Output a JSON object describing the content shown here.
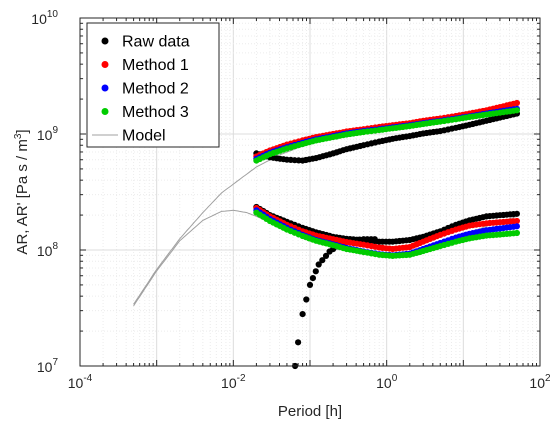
{
  "chart_data": {
    "type": "scatter",
    "xlabel": "Period [h]",
    "ylabel_parts": [
      "AR, AR'  [Pa s / m",
      "3",
      "]"
    ],
    "x_scale": "log",
    "y_scale": "log",
    "xlim": [
      0.0001,
      100
    ],
    "ylim": [
      10000000,
      10000000000
    ],
    "x_ticks": [
      {
        "base": "10",
        "exp": "-4",
        "value": 0.0001
      },
      {
        "base": "10",
        "exp": "-2",
        "value": 0.01
      },
      {
        "base": "10",
        "exp": "0",
        "value": 1
      },
      {
        "base": "10",
        "exp": "2",
        "value": 100
      }
    ],
    "y_ticks": [
      {
        "base": "10",
        "exp": "7",
        "value": 10000000
      },
      {
        "base": "10",
        "exp": "8",
        "value": 100000000
      },
      {
        "base": "10",
        "exp": "9",
        "value": 1000000000
      },
      {
        "base": "10",
        "exp": "10",
        "value": 10000000000
      }
    ],
    "grid": true,
    "legend_position": "top-left",
    "legend": [
      {
        "name": "Raw data",
        "color": "#000000",
        "kind": "marker"
      },
      {
        "name": "Method 1",
        "color": "#ff0000",
        "kind": "marker"
      },
      {
        "name": "Method 2",
        "color": "#0000ff",
        "kind": "marker"
      },
      {
        "name": "Method 3",
        "color": "#00cc00",
        "kind": "marker"
      },
      {
        "name": "Model",
        "color": "#a0a0a0",
        "kind": "line"
      }
    ],
    "series": [
      {
        "name": "Model",
        "color": "#a0a0a0",
        "kind": "line",
        "curves": [
          {
            "x": [
              0.0005,
              0.001,
              0.002,
              0.004,
              0.007,
              0.01,
              0.02,
              0.04,
              0.07,
              0.1,
              0.2,
              0.5,
              1,
              2,
              5,
              10,
              20,
              50
            ],
            "y": [
              34000000,
              68000000,
              125000000,
              210000000,
              310000000,
              370000000,
              520000000,
              660000000,
              760000000,
              820000000,
              910000000,
              1000000000,
              1070000000,
              1150000000,
              1260000000,
              1350000000,
              1450000000,
              1600000000
            ]
          },
          {
            "x": [
              0.0005,
              0.001,
              0.002,
              0.004,
              0.007,
              0.01,
              0.015,
              0.02,
              0.04,
              0.07,
              0.1,
              0.2,
              0.5,
              1,
              2,
              5,
              10,
              20,
              50
            ],
            "y": [
              33000000,
              66000000,
              120000000,
              180000000,
              215000000,
              220000000,
              210000000,
              195000000,
              160000000,
              135000000,
              122000000,
              108000000,
              98000000,
              92000000,
              95000000,
              112000000,
              135000000,
              160000000,
              195000000
            ]
          }
        ]
      },
      {
        "name": "Raw data",
        "color": "#000000",
        "kind": "marker",
        "curves": [
          {
            "x": [
              0.02,
              0.03,
              0.05,
              0.08,
              0.12,
              0.2,
              0.3,
              0.5,
              0.8,
              1.2,
              2,
              3,
              5,
              8,
              12,
              20,
              50
            ],
            "y": [
              680000000,
              630000000,
              600000000,
              590000000,
              620000000,
              680000000,
              740000000,
              800000000,
              860000000,
              910000000,
              960000000,
              1010000000,
              1060000000,
              1130000000,
              1200000000,
              1300000000,
              1500000000
            ]
          },
          {
            "x": [
              0.02,
              0.03,
              0.05,
              0.08,
              0.12,
              0.2,
              0.3,
              0.5,
              0.8,
              1.2,
              2,
              3,
              5,
              8,
              12,
              20,
              50
            ],
            "y": [
              235000000,
              200000000,
              175000000,
              155000000,
              142000000,
              130000000,
              125000000,
              121000000,
              118000000,
              118000000,
              122000000,
              130000000,
              145000000,
              165000000,
              180000000,
              195000000,
              205000000
            ]
          },
          {
            "x": [
              0.064,
              0.07,
              0.08,
              0.1,
              0.13,
              0.18,
              0.25,
              0.35,
              0.5,
              0.7
            ],
            "y": [
              10000000,
              16000000,
              28000000,
              50000000,
              75000000,
              97000000,
              113000000,
              121000000,
              124000000,
              124000000
            ]
          }
        ]
      },
      {
        "name": "Method 1",
        "color": "#ff0000",
        "kind": "marker",
        "curves": [
          {
            "x": [
              0.02,
              0.03,
              0.05,
              0.08,
              0.12,
              0.2,
              0.3,
              0.5,
              0.8,
              1.2,
              2,
              3,
              5,
              8,
              12,
              20,
              50
            ],
            "y": [
              640000000,
              720000000,
              810000000,
              880000000,
              940000000,
              1000000000,
              1050000000,
              1100000000,
              1150000000,
              1190000000,
              1240000000,
              1300000000,
              1360000000,
              1430000000,
              1500000000,
              1600000000,
              1850000000
            ]
          },
          {
            "x": [
              0.02,
              0.03,
              0.05,
              0.08,
              0.12,
              0.2,
              0.3,
              0.5,
              0.8,
              1.2,
              2,
              3,
              5,
              8,
              12,
              20,
              50
            ],
            "y": [
              230000000,
              195000000,
              165000000,
              145000000,
              133000000,
              124000000,
              117000000,
              111000000,
              105000000,
              102000000,
              106000000,
              118000000,
              135000000,
              150000000,
              162000000,
              170000000,
              178000000
            ]
          }
        ]
      },
      {
        "name": "Method 2",
        "color": "#0000ff",
        "kind": "marker",
        "curves": [
          {
            "x": [
              0.02,
              0.03,
              0.05,
              0.08,
              0.12,
              0.2,
              0.3,
              0.5,
              0.8,
              1.2,
              2,
              3,
              5,
              8,
              12,
              20,
              50
            ],
            "y": [
              610000000,
              690000000,
              770000000,
              840000000,
              900000000,
              960000000,
              1010000000,
              1060000000,
              1100000000,
              1140000000,
              1190000000,
              1240000000,
              1300000000,
              1360000000,
              1420000000,
              1500000000,
              1650000000
            ]
          },
          {
            "x": [
              0.02,
              0.03,
              0.05,
              0.08,
              0.12,
              0.2,
              0.3,
              0.5,
              0.8,
              1.2,
              2,
              3,
              5,
              8,
              12,
              20,
              50
            ],
            "y": [
              220000000,
              185000000,
              155000000,
              135000000,
              122000000,
              112000000,
              104000000,
              97000000,
              92000000,
              90000000,
              93000000,
              102000000,
              115000000,
              128000000,
              138000000,
              148000000,
              160000000
            ]
          }
        ]
      },
      {
        "name": "Method 3",
        "color": "#00cc00",
        "kind": "marker",
        "curves": [
          {
            "x": [
              0.02,
              0.03,
              0.05,
              0.08,
              0.12,
              0.2,
              0.3,
              0.5,
              0.8,
              1.2,
              2,
              3,
              5,
              8,
              12,
              20,
              50
            ],
            "y": [
              590000000,
              670000000,
              750000000,
              820000000,
              880000000,
              940000000,
              990000000,
              1040000000,
              1080000000,
              1120000000,
              1170000000,
              1220000000,
              1280000000,
              1340000000,
              1400000000,
              1470000000,
              1600000000
            ]
          },
          {
            "x": [
              0.02,
              0.03,
              0.05,
              0.08,
              0.12,
              0.2,
              0.3,
              0.5,
              0.8,
              1.2,
              2,
              3,
              5,
              8,
              12,
              20,
              50
            ],
            "y": [
              210000000,
              178000000,
              150000000,
              132000000,
              120000000,
              110000000,
              102000000,
              96000000,
              91000000,
              89000000,
              91000000,
              98000000,
              108000000,
              118000000,
              126000000,
              133000000,
              140000000
            ]
          }
        ]
      }
    ]
  }
}
